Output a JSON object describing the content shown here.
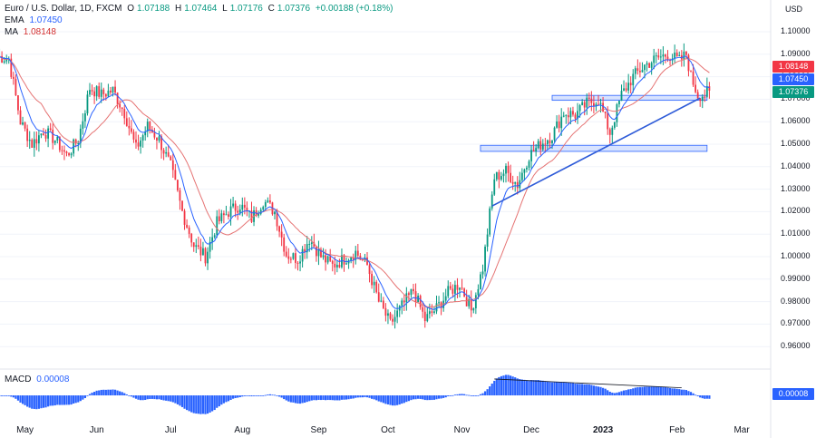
{
  "header": {
    "symbol": "Euro / U.S. Dollar, 1D, FXCM",
    "o_label": "O",
    "o_value": "1.07188",
    "h_label": "H",
    "h_value": "1.07464",
    "l_label": "L",
    "l_value": "1.07176",
    "c_label": "C",
    "c_value": "1.07376",
    "change": "+0.00188 (+0.18%)",
    "ema_label": "EMA",
    "ema_value": "1.07450",
    "ma_label": "MA",
    "ma_value": "1.08148"
  },
  "macd": {
    "label": "MACD",
    "value": "0.00008",
    "tag": "0.00008"
  },
  "tags": {
    "ma": "1.08148",
    "ema": "1.07450",
    "close": "1.07376"
  },
  "colors": {
    "up": "#089981",
    "down": "#f23645",
    "ema": "#2962ff",
    "ma": "#e57373",
    "trend": "#2e5bd8",
    "zone": "rgba(41,98,255,0.18)",
    "histogram": "#2962ff"
  },
  "chart_data": {
    "type": "candlestick",
    "title": "Euro / U.S. Dollar, 1D, FXCM",
    "ylabel": "USD",
    "ylim": [
      0.9525,
      1.1065
    ],
    "y_ticks": [
      "1.10000",
      "1.09000",
      "1.08000",
      "1.07000",
      "1.06000",
      "1.05000",
      "1.04000",
      "1.03000",
      "1.02000",
      "1.01000",
      "1.00000",
      "0.99000",
      "0.98000",
      "0.97000",
      "0.96000"
    ],
    "x_ticks": [
      {
        "label": "May",
        "i": 12
      },
      {
        "label": "Jun",
        "i": 43
      },
      {
        "label": "Jul",
        "i": 75
      },
      {
        "label": "Aug",
        "i": 106
      },
      {
        "label": "Sep",
        "i": 139
      },
      {
        "label": "Oct",
        "i": 169
      },
      {
        "label": "Nov",
        "i": 201
      },
      {
        "label": "Dec",
        "i": 231
      },
      {
        "label": "2023",
        "i": 262,
        "bold": true
      },
      {
        "label": "Feb",
        "i": 294
      },
      {
        "label": "Mar",
        "i": 322
      }
    ],
    "close_anchors": [
      [
        0,
        1.089
      ],
      [
        5,
        1.088
      ],
      [
        10,
        1.06
      ],
      [
        15,
        1.05
      ],
      [
        20,
        1.056
      ],
      [
        25,
        1.052
      ],
      [
        30,
        1.045
      ],
      [
        35,
        1.052
      ],
      [
        40,
        1.075
      ],
      [
        45,
        1.072
      ],
      [
        50,
        1.074
      ],
      [
        55,
        1.064
      ],
      [
        60,
        1.048
      ],
      [
        65,
        1.058
      ],
      [
        70,
        1.052
      ],
      [
        75,
        1.04
      ],
      [
        80,
        1.02
      ],
      [
        85,
        1.005
      ],
      [
        90,
        1.0
      ],
      [
        95,
        1.015
      ],
      [
        100,
        1.02
      ],
      [
        105,
        1.023
      ],
      [
        110,
        1.017
      ],
      [
        115,
        1.025
      ],
      [
        120,
        1.02
      ],
      [
        125,
        1.001
      ],
      [
        130,
        0.999
      ],
      [
        135,
        1.008
      ],
      [
        140,
        1.0
      ],
      [
        145,
        0.996
      ],
      [
        150,
        0.999
      ],
      [
        155,
        1.002
      ],
      [
        160,
        0.996
      ],
      [
        165,
        0.98
      ],
      [
        170,
        0.97
      ],
      [
        175,
        0.978
      ],
      [
        180,
        0.985
      ],
      [
        185,
        0.972
      ],
      [
        190,
        0.977
      ],
      [
        195,
        0.984
      ],
      [
        200,
        0.988
      ],
      [
        205,
        0.976
      ],
      [
        210,
        0.995
      ],
      [
        215,
        1.035
      ],
      [
        220,
        1.038
      ],
      [
        225,
        1.032
      ],
      [
        230,
        1.045
      ],
      [
        235,
        1.05
      ],
      [
        240,
        1.054
      ],
      [
        245,
        1.064
      ],
      [
        250,
        1.063
      ],
      [
        255,
        1.068
      ],
      [
        260,
        1.07
      ],
      [
        265,
        1.055
      ],
      [
        270,
        1.072
      ],
      [
        275,
        1.08
      ],
      [
        280,
        1.085
      ],
      [
        285,
        1.088
      ],
      [
        290,
        1.09
      ],
      [
        295,
        1.087
      ],
      [
        298,
        1.09
      ],
      [
        300,
        1.08
      ],
      [
        303,
        1.072
      ],
      [
        306,
        1.072
      ],
      [
        308,
        1.0738
      ]
    ],
    "ema": {
      "name": "EMA",
      "value": 1.0745
    },
    "ma": {
      "name": "MA",
      "value": 1.08148
    },
    "support_zones": [
      {
        "i_start": 240,
        "i_end": 307,
        "top": 1.0717,
        "bottom": 1.0695
      },
      {
        "i_start": 209,
        "i_end": 307,
        "top": 1.0495,
        "bottom": 1.0468
      }
    ],
    "trendline": {
      "i_start": 214,
      "y_start": 1.0225,
      "i_end": 304,
      "y_end": 1.0705
    },
    "macd_value": 8e-05,
    "macd_divergence_line": {
      "i_start": 215,
      "i_end": 296
    }
  }
}
